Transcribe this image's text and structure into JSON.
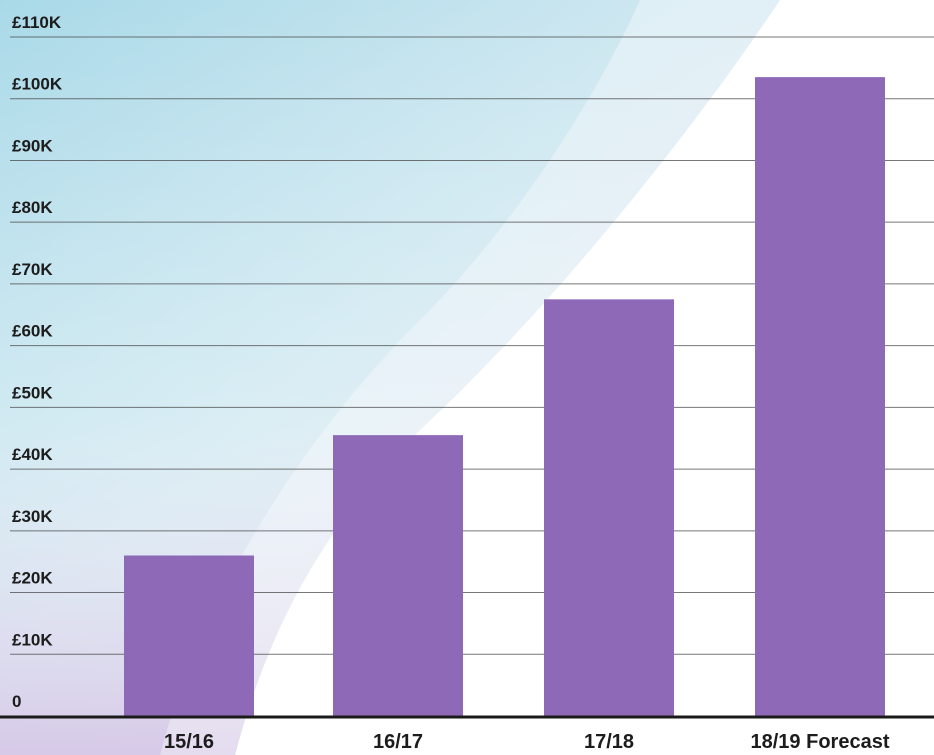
{
  "chart_data": {
    "type": "bar",
    "categories": [
      "15/16",
      "16/17",
      "17/18",
      "18/19 Forecast"
    ],
    "values": [
      26000,
      45500,
      67500,
      103500
    ],
    "ylim": [
      0,
      110000
    ],
    "yticks": [
      0,
      10000,
      20000,
      30000,
      40000,
      50000,
      60000,
      70000,
      80000,
      90000,
      100000,
      110000
    ],
    "ytick_labels": [
      "0",
      "£10K",
      "£20K",
      "£30K",
      "£40K",
      "£50K",
      "£60K",
      "£70K",
      "£80K",
      "£90K",
      "£100K",
      "£110K"
    ],
    "grid": true,
    "bar_color": "#8e69b8",
    "title": "",
    "xlabel": "",
    "ylabel": ""
  },
  "colors": {
    "grid": "#4a4a4a",
    "axis": "#1a1a1a",
    "background_swoosh_light": "#cfe7f0",
    "background_swoosh_mid": "#a7d6e6",
    "background_swoosh_purple": "#d9cde6"
  }
}
